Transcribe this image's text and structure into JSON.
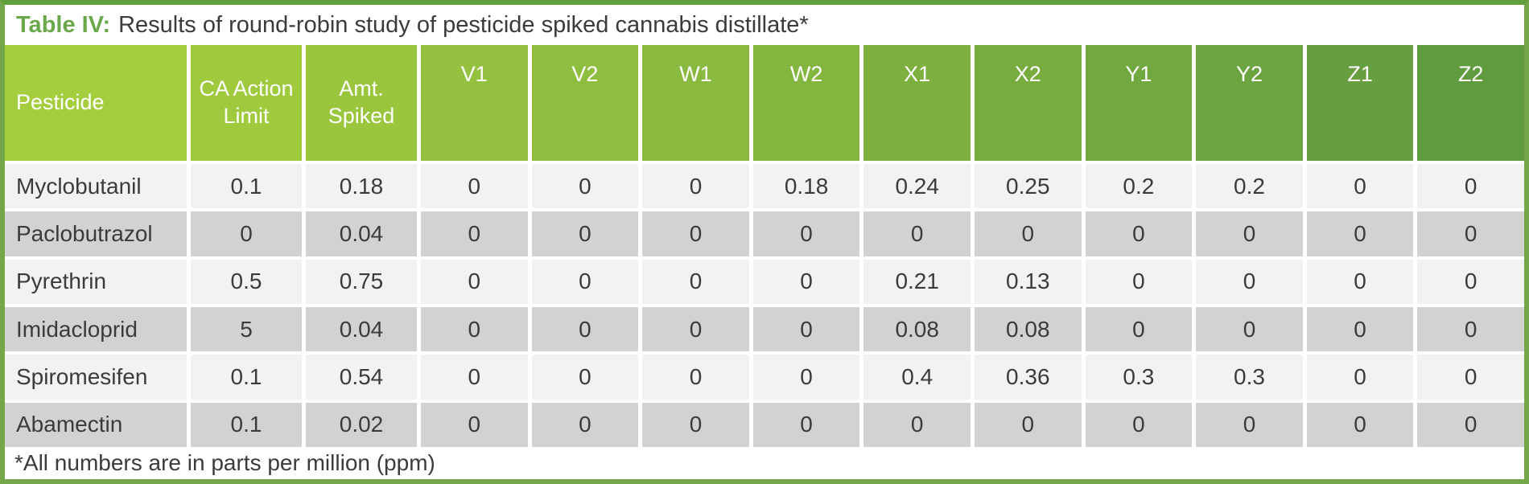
{
  "title": {
    "label": "Table IV:",
    "text": "Results of round-robin study of pesticide spiked cannabis distillate*"
  },
  "footnote": "*All numbers are in parts per million (ppm)",
  "colors": {
    "header_gradient_start": "#a5ce3e",
    "header_gradient_end": "#619b40",
    "border_green": "#74a74a",
    "title_accent": "#6aa84a",
    "row_light": "#f2f2f1",
    "row_dark": "#d2d2d1",
    "header_text": "#ffffff",
    "body_text": "#3b3b3b"
  },
  "table": {
    "headers": [
      "Pesticide",
      "CA Action Limit",
      "Amt. Spiked",
      "V1",
      "V2",
      "W1",
      "W2",
      "X1",
      "X2",
      "Y1",
      "Y2",
      "Z1",
      "Z2"
    ],
    "rows": [
      {
        "pesticide": "Myclobutanil",
        "values": [
          "0.1",
          "0.18",
          "0",
          "0",
          "0",
          "0.18",
          "0.24",
          "0.25",
          "0.2",
          "0.2",
          "0",
          "0"
        ]
      },
      {
        "pesticide": "Paclobutrazol",
        "values": [
          "0",
          "0.04",
          "0",
          "0",
          "0",
          "0",
          "0",
          "0",
          "0",
          "0",
          "0",
          "0"
        ]
      },
      {
        "pesticide": "Pyrethrin",
        "values": [
          "0.5",
          "0.75",
          "0",
          "0",
          "0",
          "0",
          "0.21",
          "0.13",
          "0",
          "0",
          "0",
          "0"
        ]
      },
      {
        "pesticide": "Imidacloprid",
        "values": [
          "5",
          "0.04",
          "0",
          "0",
          "0",
          "0",
          "0.08",
          "0.08",
          "0",
          "0",
          "0",
          "0"
        ]
      },
      {
        "pesticide": "Spiromesifen",
        "values": [
          "0.1",
          "0.54",
          "0",
          "0",
          "0",
          "0",
          "0.4",
          "0.36",
          "0.3",
          "0.3",
          "0",
          "0"
        ]
      },
      {
        "pesticide": "Abamectin",
        "values": [
          "0.1",
          "0.02",
          "0",
          "0",
          "0",
          "0",
          "0",
          "0",
          "0",
          "0",
          "0",
          "0"
        ]
      }
    ]
  }
}
